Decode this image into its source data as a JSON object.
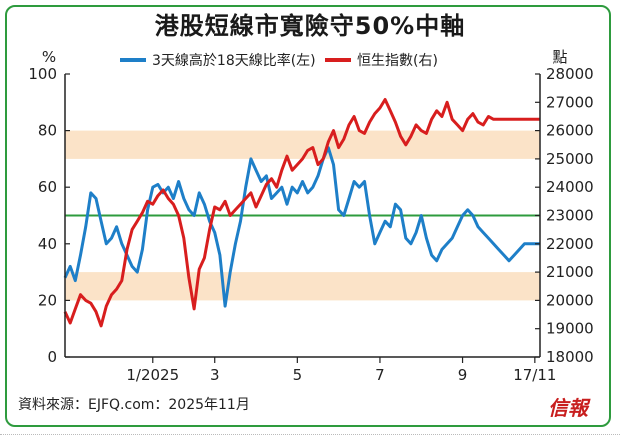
{
  "title": "港股短線市寬險守50%中軸",
  "source": "資料來源：EJFQ.com：2025年11月",
  "logo_text": "信報",
  "colors": {
    "frame": "#2e9b3e",
    "band": "#fbe3c8",
    "center_line": "#2e9b3e",
    "breadth_series": "#1e7fc8",
    "hsi_series": "#d81e1e"
  },
  "chart_data": {
    "type": "line",
    "title": "港股短線市寬險守50%中軸",
    "left_axis": {
      "unit_label": "%",
      "ylim": [
        0,
        100
      ],
      "ticks": [
        "0",
        "20",
        "40",
        "60",
        "80",
        "100"
      ]
    },
    "right_axis": {
      "unit_label": "點",
      "ylim": [
        18000,
        28000
      ],
      "ticks": [
        "18000",
        "19000",
        "20000",
        "21000",
        "22000",
        "23000",
        "24000",
        "25000",
        "26000",
        "27000",
        "28000"
      ]
    },
    "x_tick_labels": [
      "1/2025",
      "3",
      "5",
      "7",
      "9",
      "17/11"
    ],
    "reference_line": 50,
    "shaded_bands": [
      [
        20,
        30
      ],
      [
        70,
        80
      ]
    ],
    "legend_position": "top",
    "grid": false,
    "series": [
      {
        "name": "3天線高於18天線比率(左)",
        "axis": "left",
        "x": [
          0,
          0.5,
          1,
          1.5,
          2,
          2.5,
          3,
          3.5,
          4,
          4.5,
          5,
          5.5,
          6,
          6.5,
          7,
          7.5,
          8,
          8.5,
          9,
          9.5,
          10,
          10.5,
          11,
          11.5,
          12,
          12.5,
          13,
          13.5,
          14,
          14.5,
          15,
          15.5,
          16,
          16.5,
          17,
          17.5,
          18,
          18.5,
          19,
          19.5,
          20,
          20.5,
          21,
          21.5,
          22,
          22.5,
          23,
          23.5,
          24,
          24.5,
          25,
          25.5,
          26,
          26.5,
          27,
          27.5,
          28,
          28.5,
          29,
          29.5,
          30,
          30.5,
          31,
          31.5,
          32,
          32.5,
          33,
          33.5,
          34,
          34.5,
          35,
          35.5,
          36,
          36.5,
          37,
          37.5,
          38,
          38.5,
          39,
          39.5,
          40,
          40.5,
          41,
          41.5,
          42,
          42.5,
          43,
          43.5,
          44,
          44.5,
          45,
          45.5,
          46
        ],
        "values": [
          28,
          32,
          27,
          36,
          46,
          58,
          56,
          48,
          40,
          42,
          46,
          40,
          36,
          32,
          30,
          38,
          52,
          60,
          61,
          58,
          60,
          56,
          62,
          56,
          52,
          50,
          58,
          54,
          48,
          44,
          36,
          18,
          30,
          40,
          48,
          60,
          70,
          66,
          62,
          64,
          56,
          58,
          60,
          54,
          60,
          58,
          62,
          58,
          60,
          64,
          70,
          74,
          68,
          52,
          50,
          56,
          62,
          60,
          62,
          50,
          40,
          44,
          48,
          46,
          54,
          52,
          42,
          40,
          44,
          50,
          42,
          36,
          34,
          38,
          40,
          42,
          46,
          50,
          52,
          50,
          46,
          44,
          42,
          40,
          38,
          36,
          34,
          36,
          38,
          40,
          40,
          40,
          40
        ]
      },
      {
        "name": "恒生指數(右)",
        "axis": "right",
        "x": [
          0,
          0.5,
          1,
          1.5,
          2,
          2.5,
          3,
          3.5,
          4,
          4.5,
          5,
          5.5,
          6,
          6.5,
          7,
          7.5,
          8,
          8.5,
          9,
          9.5,
          10,
          10.5,
          11,
          11.5,
          12,
          12.5,
          13,
          13.5,
          14,
          14.5,
          15,
          15.5,
          16,
          16.5,
          17,
          17.5,
          18,
          18.5,
          19,
          19.5,
          20,
          20.5,
          21,
          21.5,
          22,
          22.5,
          23,
          23.5,
          24,
          24.5,
          25,
          25.5,
          26,
          26.5,
          27,
          27.5,
          28,
          28.5,
          29,
          29.5,
          30,
          30.5,
          31,
          31.5,
          32,
          32.5,
          33,
          33.5,
          34,
          34.5,
          35,
          35.5,
          36,
          36.5,
          37,
          37.5,
          38,
          38.5,
          39,
          39.5,
          40,
          40.5,
          41,
          41.5,
          42,
          42.5,
          43,
          43.5,
          44,
          44.5,
          45,
          45.5,
          46
        ],
        "values": [
          19600,
          19200,
          19700,
          20200,
          20000,
          19900,
          19600,
          19100,
          19800,
          20200,
          20400,
          20700,
          21800,
          22500,
          22800,
          23100,
          23500,
          23400,
          23700,
          23900,
          23600,
          23400,
          23000,
          22200,
          20800,
          19700,
          21100,
          21500,
          22500,
          23300,
          23200,
          23500,
          23000,
          23200,
          23400,
          23600,
          23800,
          23300,
          23700,
          24100,
          24300,
          24000,
          24600,
          25100,
          24600,
          24800,
          25000,
          25300,
          25400,
          24800,
          25000,
          25600,
          26000,
          25400,
          25700,
          26200,
          26500,
          26000,
          25900,
          26300,
          26600,
          26800,
          27100,
          26700,
          26300,
          25800,
          25500,
          25800,
          26200,
          26000,
          25900,
          26400,
          26700,
          26500,
          27000,
          26400,
          26200,
          26000,
          26400,
          26600,
          26300,
          26200,
          26500,
          26400,
          26400,
          26400,
          26400,
          26400,
          26400,
          26400,
          26400,
          26400,
          26400
        ]
      }
    ]
  }
}
